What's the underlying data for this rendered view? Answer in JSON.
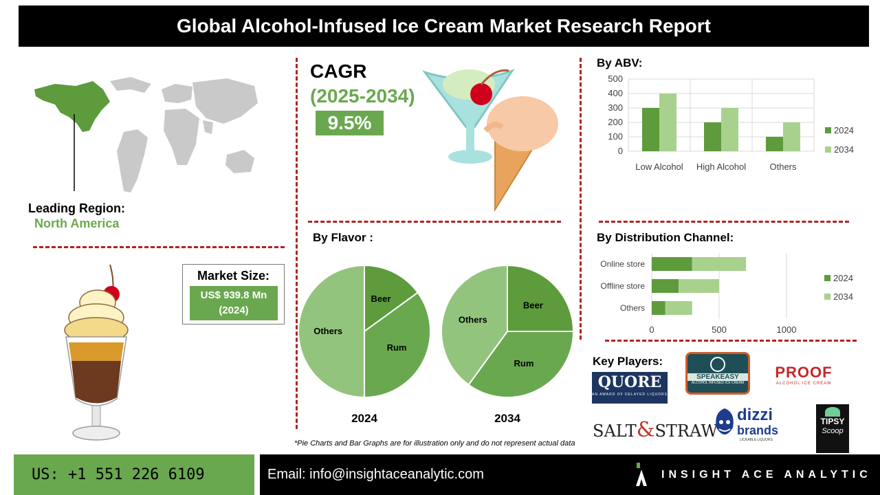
{
  "header": {
    "title": "Global Alcohol-Infused Ice Cream Market Research Report"
  },
  "region": {
    "label": "Leading Region:",
    "value": "North America"
  },
  "cagr": {
    "title": "CAGR",
    "years": "(2025-2034)",
    "value": "9.5%"
  },
  "market_size": {
    "label": "Market Size:",
    "value_line1": "US$ 939.8 Mn",
    "value_line2": "(2024)"
  },
  "sections": {
    "abv": "By ABV:",
    "flavor": "By Flavor :",
    "distribution": "By Distribution Channel:",
    "players": "Key Players:"
  },
  "colors": {
    "dark_green": "#5d9b3c",
    "mid_green": "#6aa84f",
    "light_green": "#a9d18e",
    "pale_green": "#93c47d",
    "dashes": "#b22222"
  },
  "chart_data": [
    {
      "id": "abv",
      "type": "bar",
      "categories": [
        "Low Alcohol",
        "High Alcohol",
        "Others"
      ],
      "series": [
        {
          "name": "2024",
          "values": [
            300,
            200,
            100
          ],
          "color": "#5d9b3c"
        },
        {
          "name": "2034",
          "values": [
            400,
            300,
            200
          ],
          "color": "#a9d18e"
        }
      ],
      "ylim": [
        0,
        500
      ],
      "yticks": [
        "0",
        "100",
        "200",
        "300",
        "400",
        "500"
      ],
      "grid": true,
      "legend": "right"
    },
    {
      "id": "flavor",
      "type": "pie",
      "charts": [
        {
          "year": "2024",
          "slices": [
            {
              "label": "Beer",
              "value": 15
            },
            {
              "label": "Rum",
              "value": 35
            },
            {
              "label": "Others",
              "value": 50
            }
          ]
        },
        {
          "year": "2034",
          "slices": [
            {
              "label": "Beer",
              "value": 25
            },
            {
              "label": "Rum",
              "value": 35
            },
            {
              "label": "Others",
              "value": 40
            }
          ]
        }
      ]
    },
    {
      "id": "distribution",
      "type": "bar",
      "orientation": "horizontal",
      "stacked": true,
      "categories": [
        "Online store",
        "Offline store",
        "Others"
      ],
      "series": [
        {
          "name": "2024",
          "values": [
            300,
            200,
            100
          ],
          "color": "#5d9b3c"
        },
        {
          "name": "2034",
          "values": [
            400,
            300,
            200
          ],
          "color": "#a9d18e"
        }
      ],
      "xlim": [
        0,
        1000
      ],
      "xticks": [
        "0",
        "500",
        "1000"
      ],
      "legend": "right"
    }
  ],
  "players": {
    "quore": {
      "name": "QUORE",
      "tag": "AN AWARD OF DELAYED LIQUORS"
    },
    "speakeasy": {
      "name": "SPEAKEASY",
      "tag": "ALCOHOL INFUSED ICE CREAM"
    },
    "proof": {
      "name": "PROOF",
      "tag": "ALCOHOL ICE CREAM"
    },
    "saltstraw": {
      "part1": "SALT",
      "part2": "STRAW"
    },
    "dizzi": {
      "name1": "dizzi",
      "name2": "brands",
      "tag": "LICKABLE LIQUORS"
    },
    "tipsy": {
      "name1": "TIPSY",
      "name2": "Scoop"
    }
  },
  "footnote": "*Pie Charts and Bar Graphs are for illustration only and do not represent actual data",
  "footer": {
    "phone": "US: +1 551 226 6109",
    "email": "Email: info@insightaceanalytic.com",
    "brand": "INSIGHT ACE ANALYTIC"
  }
}
